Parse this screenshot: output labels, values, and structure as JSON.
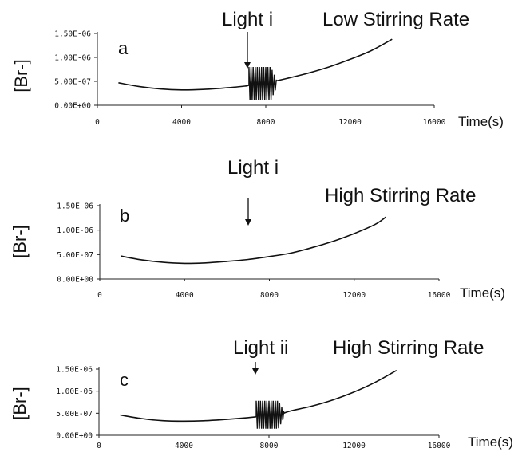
{
  "chart_data": [
    {
      "type": "line",
      "panel": "a",
      "annotation": "Light i",
      "title": "Low Stirring Rate",
      "xlabel": "Time(s)",
      "ylabel": "[Br-]",
      "xlim": [
        0,
        16000
      ],
      "ylim": [
        0,
        1.5e-06
      ],
      "x_ticks": [
        "0",
        "4000",
        "8000",
        "12000",
        "16000"
      ],
      "y_ticks": [
        "0.00E+00",
        "5.00E-07",
        "1.00E-06",
        "1.50E-06"
      ],
      "light_on_at": 7200,
      "series": [
        {
          "x": [
            1000,
            2000,
            3000,
            4000,
            5000,
            6000,
            7000,
            8500,
            9000,
            10000,
            11000,
            12000,
            13000,
            14000
          ],
          "y": [
            4.7e-07,
            3.9e-07,
            3.4e-07,
            3.2e-07,
            3.3e-07,
            3.6e-07,
            4e-07,
            5.1e-07,
            5.6e-07,
            6.7e-07,
            8e-07,
            9.6e-07,
            1.14e-06,
            1.38e-06
          ],
          "oscillation": {
            "x_start": 7200,
            "x_end": 8500,
            "y_min": 1e-07,
            "y_max": 8e-07
          }
        }
      ]
    },
    {
      "type": "line",
      "panel": "b",
      "annotation": "Light i",
      "title": "High Stirring Rate",
      "xlabel": "Time(s)",
      "ylabel": "[Br-]",
      "xlim": [
        0,
        16000
      ],
      "ylim": [
        0,
        1.5e-06
      ],
      "x_ticks": [
        "0",
        "4000",
        "8000",
        "12000",
        "16000"
      ],
      "y_ticks": [
        "0.00E+00",
        "5.00E-07",
        "1.00E-06",
        "1.50E-06"
      ],
      "light_on_at": 7100,
      "series": [
        {
          "x": [
            1000,
            2000,
            3000,
            4000,
            5000,
            6000,
            7000,
            8000,
            9000,
            10000,
            11000,
            12000,
            13000,
            13500
          ],
          "y": [
            4.7e-07,
            3.9e-07,
            3.4e-07,
            3.2e-07,
            3.3e-07,
            3.6e-07,
            4e-07,
            4.6e-07,
            5.3e-07,
            6.4e-07,
            7.7e-07,
            9.3e-07,
            1.12e-06,
            1.27e-06
          ]
        }
      ]
    },
    {
      "type": "line",
      "panel": "c",
      "annotation": "Light ii",
      "title": "High Stirring Rate",
      "xlabel": "Time(s)",
      "ylabel": "[Br-]",
      "xlim": [
        0,
        16000
      ],
      "ylim": [
        0,
        1.5e-06
      ],
      "x_ticks": [
        "0",
        "4000",
        "8000",
        "12000",
        "16000"
      ],
      "y_ticks": [
        "0.00E+00",
        "5.00E-07",
        "1.00E-06",
        "1.50E-06"
      ],
      "light_on_at": 7400,
      "series": [
        {
          "x": [
            1000,
            2000,
            3000,
            4000,
            5000,
            6000,
            7000,
            8700,
            9000,
            10000,
            11000,
            12000,
            13000,
            14000
          ],
          "y": [
            4.6e-07,
            3.8e-07,
            3.3e-07,
            3.2e-07,
            3.3e-07,
            3.6e-07,
            4e-07,
            5e-07,
            5.5e-07,
            6.6e-07,
            8e-07,
            9.8e-07,
            1.2e-06,
            1.47e-06
          ],
          "oscillation": {
            "x_start": 7400,
            "x_end": 8700,
            "y_min": 1.5e-07,
            "y_max": 7.8e-07
          }
        }
      ]
    }
  ]
}
